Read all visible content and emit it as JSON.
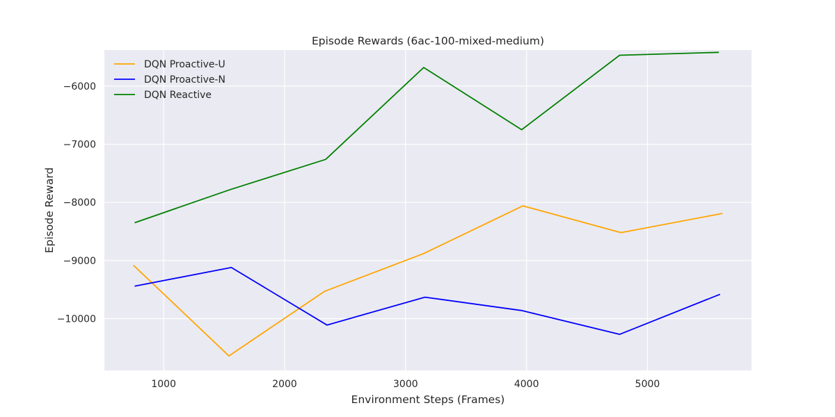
{
  "chart_data": {
    "type": "line",
    "title": "Episode Rewards (6ac-100-mixed-medium)",
    "xlabel": "Environment Steps (Frames)",
    "ylabel": "Episode Reward",
    "xlim": [
      510,
      5860
    ],
    "ylim": [
      -10890,
      -5380
    ],
    "xticks": [
      1000,
      2000,
      3000,
      4000,
      5000
    ],
    "xtick_labels": [
      "1000",
      "2000",
      "3000",
      "4000",
      "5000"
    ],
    "yticks": [
      -10000,
      -9000,
      -8000,
      -7000,
      -6000
    ],
    "ytick_labels": [
      "−10000",
      "−9000",
      "−8000",
      "−7000",
      "−6000"
    ],
    "grid": true,
    "legend_position": "top-left",
    "series": [
      {
        "name": "DQN Proactive-U",
        "color": "#FFA500",
        "x": [
          750,
          1540,
          2330,
          3150,
          3970,
          4780,
          5620
        ],
        "y": [
          -9080,
          -10640,
          -9530,
          -8880,
          -8060,
          -8520,
          -8190
        ]
      },
      {
        "name": "DQN Proactive-N",
        "color": "#0000FF",
        "x": [
          760,
          1560,
          2350,
          3160,
          3960,
          4770,
          5600
        ],
        "y": [
          -9440,
          -9120,
          -10110,
          -9630,
          -9860,
          -10270,
          -9580
        ]
      },
      {
        "name": "DQN Reactive",
        "color": "#008000",
        "x": [
          760,
          1550,
          2340,
          3150,
          3960,
          4770,
          5590
        ],
        "y": [
          -8350,
          -7780,
          -7260,
          -5680,
          -6750,
          -5470,
          -5420
        ]
      }
    ]
  }
}
